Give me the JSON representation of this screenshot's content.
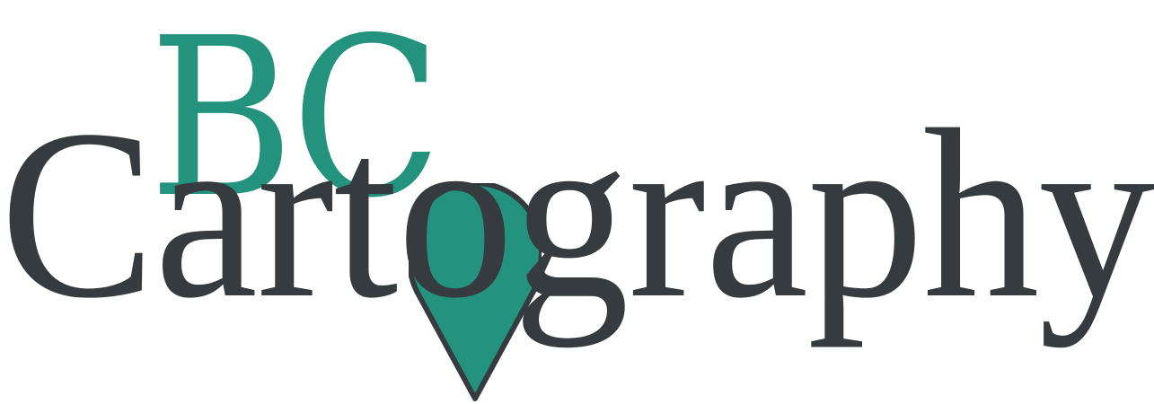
{
  "logo": {
    "line1": "BC",
    "line2": "Cartography",
    "icon": "map-pin-icon",
    "colors": {
      "accent": "#23937d",
      "text": "#353b3e",
      "background": "#ffffff"
    }
  }
}
